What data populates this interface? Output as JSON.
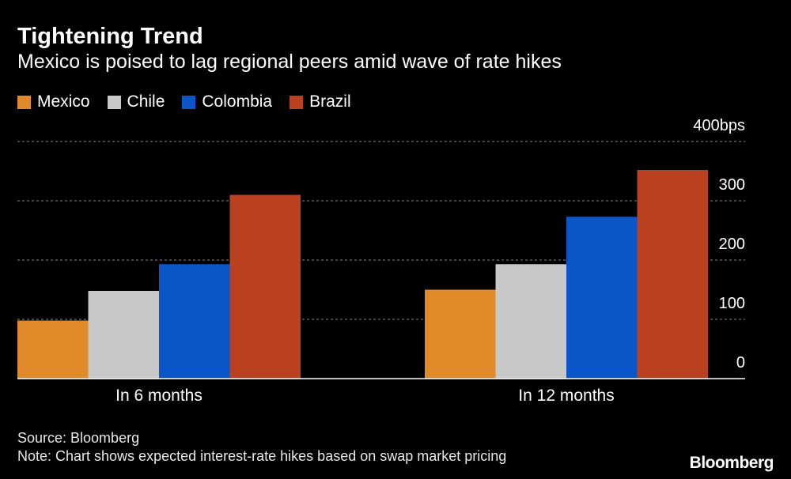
{
  "title": "Tightening Trend",
  "subtitle": "Mexico is poised to lag regional peers amid wave of rate hikes",
  "source": "Source: Bloomberg",
  "note": "Note: Chart shows expected interest-rate hikes based on swap market pricing",
  "brand": "Bloomberg",
  "colors": {
    "Mexico": "#e08a2a",
    "Chile": "#c8c8c8",
    "Colombia": "#0a55c8",
    "Brazil": "#b9411f",
    "grid": "#888888",
    "axis": "#ffffff"
  },
  "chart_data": {
    "type": "bar",
    "categories": [
      "In 6 months",
      "In 12 months"
    ],
    "series": [
      {
        "name": "Mexico",
        "values": [
          98,
          150
        ]
      },
      {
        "name": "Chile",
        "values": [
          148,
          193
        ]
      },
      {
        "name": "Colombia",
        "values": [
          193,
          273
        ]
      },
      {
        "name": "Brazil",
        "values": [
          310,
          352
        ]
      }
    ],
    "y_ticks": [
      {
        "value": 0,
        "label": "0"
      },
      {
        "value": 100,
        "label": "100"
      },
      {
        "value": 200,
        "label": "200"
      },
      {
        "value": 300,
        "label": "300"
      },
      {
        "value": 400,
        "label": "400bps"
      }
    ],
    "ylim": [
      0,
      400
    ],
    "yaxis_position": "right",
    "legend_position": "top-left",
    "grid": true
  }
}
